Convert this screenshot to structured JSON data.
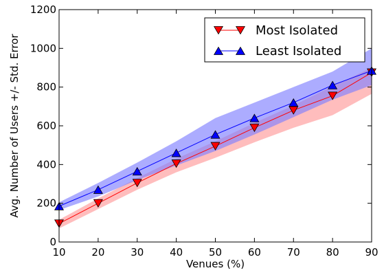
{
  "chart_data": {
    "type": "line",
    "title": "",
    "xlabel": "Venues (%)",
    "ylabel": "Avg. Number of Users +/- Std. Error",
    "x": [
      10,
      20,
      30,
      40,
      50,
      60,
      70,
      80,
      90
    ],
    "xlim": [
      10,
      90
    ],
    "ylim": [
      0,
      1200
    ],
    "x_ticks": [
      "10",
      "20",
      "30",
      "40",
      "50",
      "60",
      "70",
      "80",
      "90"
    ],
    "y_ticks": [
      "0",
      "200",
      "400",
      "600",
      "800",
      "1000",
      "1200"
    ],
    "grid": false,
    "legend_position": "top-right",
    "series": [
      {
        "name": "Most Isolated",
        "color": "#ff0000",
        "band_color": "#ff9999",
        "marker": "triangle-down",
        "values": [
          95,
          200,
          305,
          405,
          495,
          590,
          680,
          755,
          875
        ],
        "lower": [
          70,
          170,
          270,
          360,
          435,
          515,
          590,
          655,
          765
        ],
        "upper": [
          115,
          225,
          330,
          430,
          520,
          615,
          705,
          805,
          900
        ]
      },
      {
        "name": "Least Isolated",
        "color": "#0000ff",
        "band_color": "#8080ff",
        "marker": "triangle-up",
        "values": [
          185,
          270,
          365,
          460,
          555,
          640,
          720,
          810,
          885
        ],
        "lower": [
          165,
          235,
          320,
          395,
          470,
          555,
          645,
          735,
          810
        ],
        "upper": [
          205,
          305,
          410,
          520,
          640,
          720,
          800,
          880,
          1000
        ]
      }
    ]
  }
}
